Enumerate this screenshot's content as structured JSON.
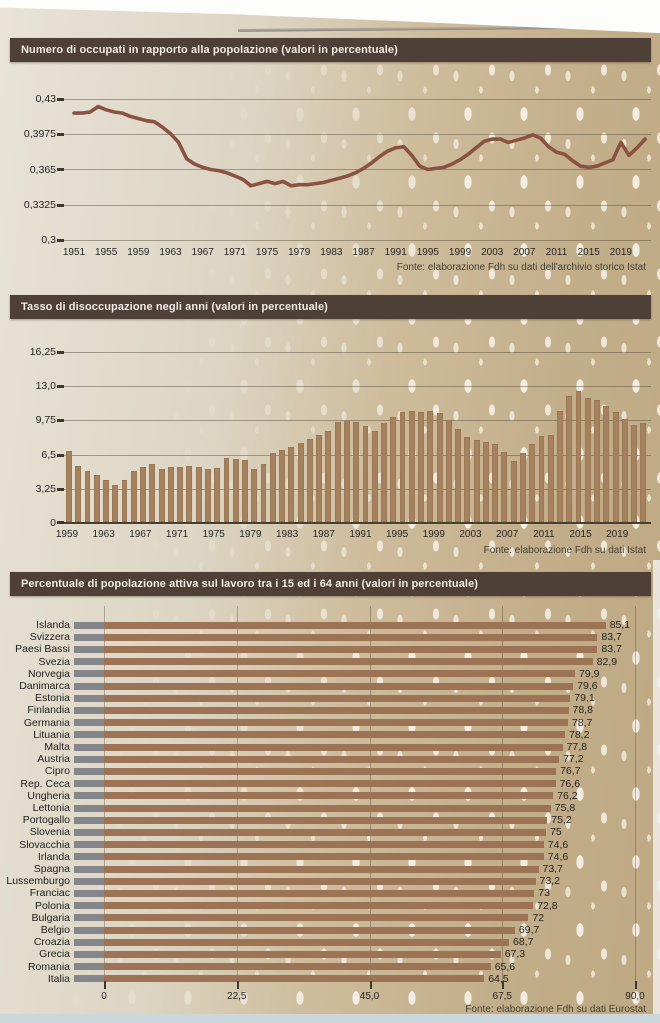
{
  "chart_data": [
    {
      "type": "line",
      "title": "Numero di occupati in rapporto alla popolazione (valori in percentuale)",
      "source": "Fonte: elaborazione Fdh su dati dell'archivio storico Istat",
      "y_ticks": [
        "0,43",
        "0,3975",
        "0,365",
        "0,3325",
        "0,3"
      ],
      "ylim": [
        0.3,
        0.43
      ],
      "x_ticks": [
        "1951",
        "1955",
        "1959",
        "1963",
        "1967",
        "1971",
        "1975",
        "1979",
        "1983",
        "1987",
        "1991",
        "1995",
        "1999",
        "2003",
        "2007",
        "2011",
        "2015",
        "2019"
      ],
      "x_start_year": 1951,
      "x_end_year": 2022,
      "grid": "horizontal",
      "line_color": "#8a5240",
      "values": [
        0.417,
        0.417,
        0.418,
        0.423,
        0.42,
        0.418,
        0.417,
        0.414,
        0.412,
        0.41,
        0.409,
        0.404,
        0.398,
        0.39,
        0.375,
        0.37,
        0.367,
        0.365,
        0.364,
        0.362,
        0.359,
        0.356,
        0.35,
        0.352,
        0.354,
        0.352,
        0.354,
        0.35,
        0.351,
        0.351,
        0.352,
        0.353,
        0.355,
        0.357,
        0.359,
        0.362,
        0.366,
        0.371,
        0.377,
        0.382,
        0.385,
        0.386,
        0.378,
        0.368,
        0.365,
        0.366,
        0.367,
        0.37,
        0.374,
        0.379,
        0.385,
        0.391,
        0.393,
        0.393,
        0.39,
        0.392,
        0.394,
        0.397,
        0.394,
        0.386,
        0.381,
        0.379,
        0.373,
        0.368,
        0.367,
        0.368,
        0.371,
        0.374,
        0.39,
        0.378,
        0.385,
        0.393
      ]
    },
    {
      "type": "bar",
      "title": "Tasso di disoccupazione negli anni (valori in percentuale)",
      "source": "Fonte: elaborazione Fdh su dati Istat",
      "y_ticks": [
        "16,25",
        "13,0",
        "9,75",
        "6,5",
        "3,25",
        "0"
      ],
      "ylim": [
        0,
        16.25
      ],
      "x_ticks": [
        "1959",
        "1963",
        "1967",
        "1971",
        "1975",
        "1979",
        "1983",
        "1987",
        "1991",
        "1995",
        "1999",
        "2003",
        "2007",
        "2011",
        "2015",
        "2019"
      ],
      "x_start_year": 1959,
      "x_end_year": 2021,
      "grid": "horizontal",
      "bar_color": "#a6815d",
      "values": [
        6.8,
        5.4,
        4.9,
        4.5,
        4.0,
        3.6,
        4.0,
        4.9,
        5.3,
        5.6,
        5.1,
        5.3,
        5.3,
        5.4,
        5.3,
        5.1,
        5.2,
        6.2,
        6.1,
        6.0,
        5.1,
        5.6,
        6.6,
        6.9,
        7.2,
        7.6,
        8.0,
        8.4,
        8.8,
        9.6,
        9.7,
        9.6,
        9.2,
        8.8,
        9.5,
        10.1,
        10.6,
        10.7,
        10.6,
        10.7,
        10.5,
        9.8,
        8.9,
        8.2,
        7.9,
        7.7,
        7.5,
        6.7,
        5.9,
        6.6,
        7.5,
        8.3,
        8.4,
        10.7,
        12.1,
        12.6,
        11.9,
        11.7,
        11.2,
        10.6,
        9.9,
        9.3,
        9.5
      ]
    },
    {
      "type": "bar",
      "orientation": "horizontal",
      "title": "Percentuale di popolazione attiva sul lavoro tra i 15 ed i 64 anni (valori in percentuale)",
      "source": "Fonte: elaborazione Fdh su dati Eurostat",
      "x_ticks": [
        "0",
        "22,5",
        "45,0",
        "67,5",
        "90,0"
      ],
      "xlim": [
        0,
        90
      ],
      "grid": "vertical",
      "bar_color": "#9c7354",
      "stub_color": "#85858c",
      "rows": [
        {
          "name": "Islanda",
          "value": 85.1,
          "value_label": "85,1"
        },
        {
          "name": "Svizzera",
          "value": 83.7,
          "value_label": "83,7"
        },
        {
          "name": "Paesi Bassi",
          "value": 83.7,
          "value_label": "83,7"
        },
        {
          "name": "Svezia",
          "value": 82.9,
          "value_label": "82,9"
        },
        {
          "name": "Norvegia",
          "value": 79.9,
          "value_label": "79,9"
        },
        {
          "name": "Danimarca",
          "value": 79.6,
          "value_label": "79,6"
        },
        {
          "name": "Estonia",
          "value": 79.1,
          "value_label": "79,1"
        },
        {
          "name": "Finlandia",
          "value": 78.8,
          "value_label": "78,8"
        },
        {
          "name": "Germania",
          "value": 78.7,
          "value_label": "78,7"
        },
        {
          "name": "Lituania",
          "value": 78.2,
          "value_label": "78,2"
        },
        {
          "name": "Malta",
          "value": 77.8,
          "value_label": "77,8"
        },
        {
          "name": "Austria",
          "value": 77.2,
          "value_label": "77,2"
        },
        {
          "name": "Cipro",
          "value": 76.7,
          "value_label": "76,7"
        },
        {
          "name": "Rep. Ceca",
          "value": 76.6,
          "value_label": "76,6"
        },
        {
          "name": "Ungheria",
          "value": 76.2,
          "value_label": "76,2"
        },
        {
          "name": "Lettonia",
          "value": 75.8,
          "value_label": "75,8"
        },
        {
          "name": "Portogallo",
          "value": 75.2,
          "value_label": "75,2"
        },
        {
          "name": "Slovenia",
          "value": 75.0,
          "value_label": "75"
        },
        {
          "name": "Slovacchia",
          "value": 74.6,
          "value_label": "74,6"
        },
        {
          "name": "Irlanda",
          "value": 74.6,
          "value_label": "74,6"
        },
        {
          "name": "Spagna",
          "value": 73.7,
          "value_label": "73,7"
        },
        {
          "name": "Lussemburgo",
          "value": 73.2,
          "value_label": "73,2"
        },
        {
          "name": "Franciac",
          "value": 73.0,
          "value_label": "73"
        },
        {
          "name": "Polonia",
          "value": 72.8,
          "value_label": "72,8"
        },
        {
          "name": "Bulgaria",
          "value": 72.0,
          "value_label": "72"
        },
        {
          "name": "Belgio",
          "value": 69.7,
          "value_label": "69,7"
        },
        {
          "name": "Croazia",
          "value": 68.7,
          "value_label": "68,7"
        },
        {
          "name": "Grecia",
          "value": 67.3,
          "value_label": "67,3"
        },
        {
          "name": "Romania",
          "value": 65.6,
          "value_label": "65,6"
        },
        {
          "name": "Italia",
          "value": 64.5,
          "value_label": "64,5"
        }
      ]
    }
  ]
}
